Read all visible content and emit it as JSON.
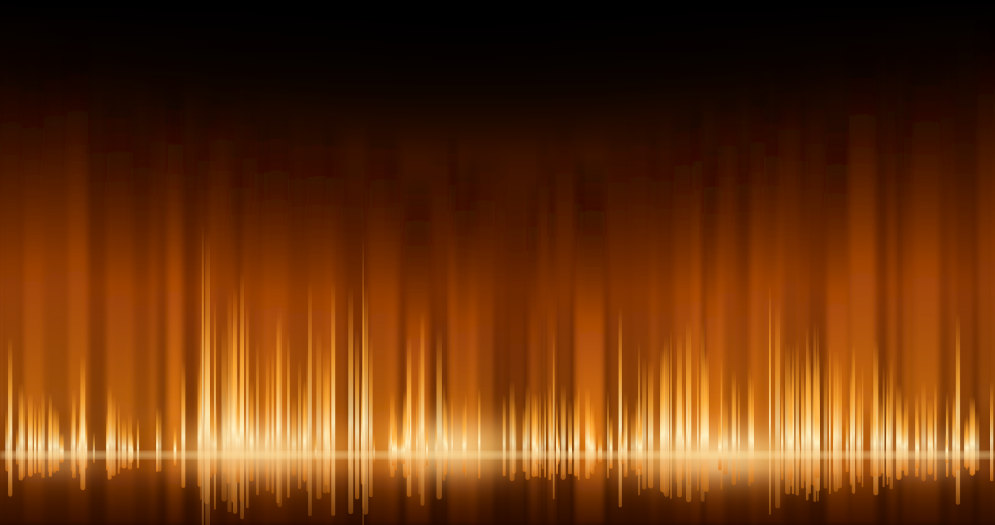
{
  "image": {
    "palette": {
      "background": "#000000",
      "deep_amber": "#5a1e00",
      "amber": "#c8620a",
      "orange": "#ff9a1f",
      "gold": "#ffc65a",
      "core": "#fff3c8"
    }
  }
}
